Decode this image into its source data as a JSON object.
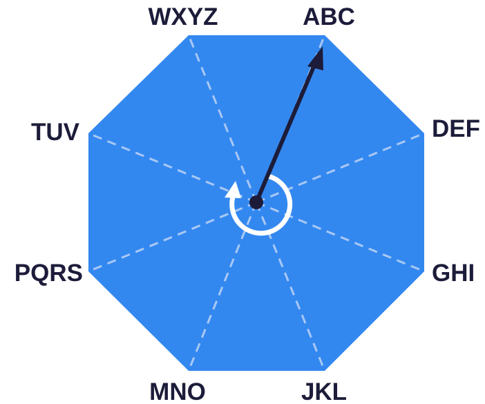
{
  "dial": {
    "labels": {
      "abc": "ABC",
      "def": "DEF",
      "ghi": "GHI",
      "jkl": "JKL",
      "mno": "MNO",
      "pqrs": "PQRS",
      "tuv": "TUV",
      "wxyz": "WXYZ"
    },
    "selected": "ABC",
    "rotation_direction": "counterclockwise",
    "colors": {
      "face": "#3388f0",
      "divider": "#a9c8f4",
      "hand": "#1c1c3a",
      "rotation_arrow": "#ffffff",
      "label": "#1c1c3a"
    }
  }
}
